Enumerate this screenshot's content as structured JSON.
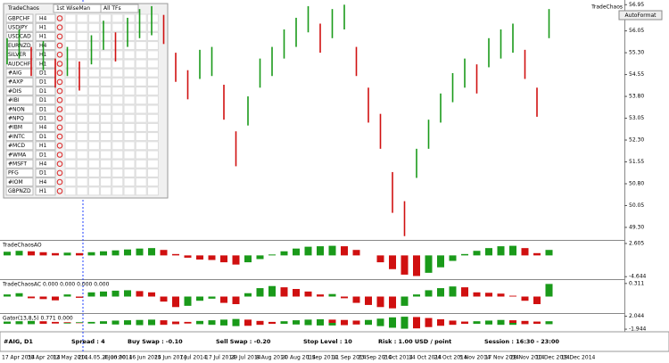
{
  "panel": {
    "title": "TradeChaos",
    "mode": "1st WiseMan",
    "filter": "All TFs",
    "rows": [
      [
        "GBPCHF",
        "H4"
      ],
      [
        "USDJPY",
        "H1"
      ],
      [
        "USDCAD",
        "H1"
      ],
      [
        "EURNZD",
        "H4"
      ],
      [
        "SILVER",
        "H1"
      ],
      [
        "AUDCHF",
        "H1"
      ],
      [
        "#AIG",
        "D1"
      ],
      [
        "#AXP",
        "D1"
      ],
      [
        "#DIS",
        "D1"
      ],
      [
        "#IBI",
        "D1"
      ],
      [
        "#NON",
        "D1"
      ],
      [
        "#NPQ",
        "D1"
      ],
      [
        "#IBM",
        "H4"
      ],
      [
        "#INTC",
        "D1"
      ],
      [
        "#MCD",
        "H1"
      ],
      [
        "#WMA",
        "D1"
      ],
      [
        "#MSFT",
        "H4"
      ],
      [
        "PFG",
        "D1"
      ],
      [
        "#IOM",
        "H4"
      ],
      [
        "GBPNZD",
        "H1"
      ]
    ]
  },
  "top_right": {
    "label": "TradeChaos",
    "button": "AutoFormat"
  },
  "chart_data": [
    {
      "type": "range_bar",
      "high": [
        55.8,
        56.1,
        55.5,
        55.7,
        55.1,
        55.5,
        55.0,
        55.9,
        56.4,
        56.0,
        56.5,
        56.8,
        56.9,
        56.6,
        55.3,
        54.7,
        55.4,
        55.5,
        54.2,
        52.6,
        53.8,
        55.1,
        55.5,
        56.1,
        56.5,
        56.9,
        56.3,
        56.8,
        56.95,
        55.5,
        54.1,
        53.2,
        51.2,
        50.2,
        52.0,
        53.0,
        53.9,
        54.6,
        55.1,
        54.9,
        55.8,
        56.1,
        56.3,
        55.4,
        54.1,
        56.8
      ],
      "low": [
        54.9,
        55.1,
        54.5,
        54.7,
        54.1,
        54.5,
        54.0,
        54.9,
        55.4,
        55.0,
        55.5,
        55.8,
        55.9,
        55.6,
        54.3,
        53.7,
        54.4,
        54.5,
        53.0,
        51.4,
        52.8,
        54.1,
        54.5,
        55.1,
        55.5,
        56.0,
        55.3,
        55.8,
        56.1,
        54.5,
        52.9,
        52.0,
        49.8,
        49.0,
        51.0,
        52.0,
        52.9,
        53.6,
        54.1,
        53.9,
        54.8,
        55.1,
        55.3,
        54.4,
        53.1,
        55.8
      ],
      "ylim": [
        48.9,
        57.05
      ],
      "yticks": [
        56.95,
        56.05,
        {
          "value": 55.3,
          "label": "55.30"
        },
        54.55,
        {
          "value": 53.8,
          "label": "53.80"
        },
        53.05,
        {
          "value": 52.3,
          "label": "52.30"
        },
        51.55,
        {
          "value": 50.8,
          "label": "50.80"
        },
        50.05,
        {
          "value": 49.3,
          "label": "49.30"
        }
      ]
    },
    {
      "type": "bar",
      "title": "TradeChaosAO",
      "values": [
        0.8,
        1.0,
        0.9,
        0.7,
        0.5,
        0.6,
        0.5,
        0.7,
        0.9,
        1.1,
        1.3,
        1.5,
        1.6,
        1.2,
        0.3,
        -0.5,
        -0.9,
        -1.0,
        -1.5,
        -2.0,
        -1.5,
        -0.8,
        0.2,
        0.9,
        1.5,
        1.9,
        2.0,
        2.1,
        2.0,
        1.2,
        0.0,
        -1.5,
        -3.0,
        -4.2,
        -4.5,
        -3.8,
        -2.6,
        -1.2,
        0.3,
        1.0,
        1.6,
        2.0,
        2.1,
        1.6,
        0.5,
        1.2
      ],
      "ylim": [
        -4.8,
        2.8
      ],
      "yticks": [
        2.605,
        -4.644
      ]
    },
    {
      "type": "bar",
      "title": "TradeChaosAC 0.000 0.000 0.000 0.000",
      "values": [
        0.05,
        0.08,
        -0.04,
        -0.06,
        -0.09,
        0.05,
        -0.03,
        0.1,
        0.12,
        0.14,
        0.15,
        0.13,
        0.1,
        -0.12,
        -0.25,
        -0.22,
        -0.1,
        -0.05,
        -0.15,
        -0.18,
        0.08,
        0.2,
        0.25,
        0.22,
        0.18,
        0.12,
        0.05,
        0.06,
        -0.04,
        -0.15,
        -0.2,
        -0.25,
        -0.28,
        -0.22,
        0.05,
        0.15,
        0.2,
        0.24,
        0.22,
        0.1,
        0.09,
        0.07,
        0.02,
        -0.1,
        -0.18,
        0.3
      ],
      "ylim": [
        -0.35,
        0.35
      ],
      "yticks": [
        0.311
      ]
    },
    {
      "type": "gator",
      "title": "Gator(13,8,5) 0.771 0.000",
      "upper": [
        0.4,
        0.5,
        0.6,
        0.5,
        0.3,
        0.2,
        0.2,
        0.3,
        0.5,
        0.7,
        0.8,
        0.9,
        1.0,
        0.8,
        0.4,
        0.3,
        0.6,
        0.8,
        1.0,
        1.2,
        1.0,
        0.6,
        0.3,
        0.5,
        0.8,
        1.0,
        1.1,
        1.0,
        0.9,
        0.7,
        0.9,
        1.3,
        1.7,
        1.9,
        1.8,
        1.5,
        1.1,
        0.7,
        0.4,
        0.5,
        0.7,
        0.9,
        0.8,
        0.6,
        0.4,
        0.5
      ],
      "lower": [
        -0.3,
        -0.4,
        -0.4,
        -0.3,
        -0.2,
        -0.2,
        -0.1,
        -0.2,
        -0.3,
        -0.5,
        -0.6,
        -0.7,
        -0.7,
        -0.6,
        -0.4,
        -0.2,
        -0.4,
        -0.6,
        -0.8,
        -1.0,
        -0.9,
        -0.6,
        -0.3,
        -0.3,
        -0.5,
        -0.7,
        -0.8,
        -0.8,
        -0.7,
        -0.5,
        -0.6,
        -1.0,
        -1.5,
        -1.8,
        -1.7,
        -1.3,
        -0.9,
        -0.6,
        -0.3,
        -0.3,
        -0.5,
        -0.6,
        -0.6,
        -0.4,
        -0.3,
        -0.4
      ],
      "ylim": [
        -2.2,
        2.2
      ],
      "yticks": [
        2.044,
        -1.944
      ]
    }
  ],
  "status": [
    "#AIG, D1",
    "Spread : 4",
    "Buy Swap : -0.10",
    "Sell Swap : -0.20",
    "Stop Level : 10",
    "Risk : 1.00 USD / point",
    "Session : 16:30 - 23:00"
  ],
  "dates": [
    "17 Apr 2014",
    "30 Apr 2014",
    "12 May 2014",
    "2014.05.26 00:00",
    "4 Jun 2014",
    "16 Jun 2014",
    "25 Jun 2014",
    "7 Jul 2014",
    "17 Jul 2014",
    "29 Jul 2014",
    "8 Aug 2014",
    "20 Aug 2014",
    "1 Sep 2014",
    "11 Sep 2014",
    "23 Sep 2014",
    "2 Oct 2014",
    "14 Oct 2014",
    "24 Oct 2014",
    "5 Nov 2014",
    "17 Nov 2014",
    "28 Nov 2014",
    "10 Dec 2014",
    "19 Dec 2014"
  ]
}
